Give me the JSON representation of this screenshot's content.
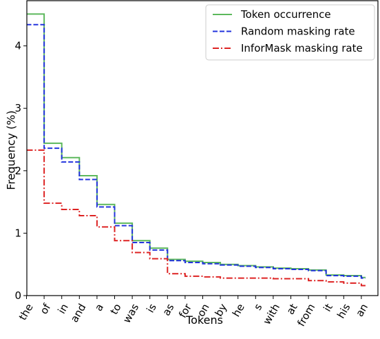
{
  "chart_data": {
    "type": "line",
    "xlabel": "Tokens",
    "ylabel": "Frequency (%)",
    "categories": [
      "the",
      "of",
      "in",
      "and",
      "a",
      "to",
      "was",
      "is",
      "as",
      "for",
      "on",
      "by",
      "he",
      "s",
      "with",
      "at",
      "from",
      "it",
      "his",
      "an"
    ],
    "yticks": [
      0,
      1,
      2,
      3,
      4
    ],
    "ylim": [
      0,
      4.5
    ],
    "legend_position": "top-right",
    "series": [
      {
        "name": "Token occurrence",
        "color": "#5cb85c",
        "dash": "solid",
        "values": [
          4.51,
          2.44,
          2.21,
          1.92,
          1.46,
          1.16,
          0.88,
          0.76,
          0.58,
          0.55,
          0.53,
          0.5,
          0.48,
          0.46,
          0.44,
          0.43,
          0.41,
          0.33,
          0.32,
          0.29
        ]
      },
      {
        "name": "Random masking rate",
        "color": "#2233dd",
        "dash": "dashed",
        "values": [
          4.34,
          2.36,
          2.14,
          1.86,
          1.42,
          1.12,
          0.85,
          0.73,
          0.56,
          0.53,
          0.51,
          0.49,
          0.47,
          0.45,
          0.43,
          0.42,
          0.4,
          0.32,
          0.31,
          0.28
        ]
      },
      {
        "name": "InforMask masking rate",
        "color": "#dd2222",
        "dash": "dashdot",
        "values": [
          2.33,
          1.48,
          1.38,
          1.28,
          1.1,
          0.88,
          0.69,
          0.59,
          0.35,
          0.31,
          0.3,
          0.28,
          0.28,
          0.28,
          0.27,
          0.27,
          0.24,
          0.22,
          0.2,
          0.16
        ]
      }
    ]
  }
}
